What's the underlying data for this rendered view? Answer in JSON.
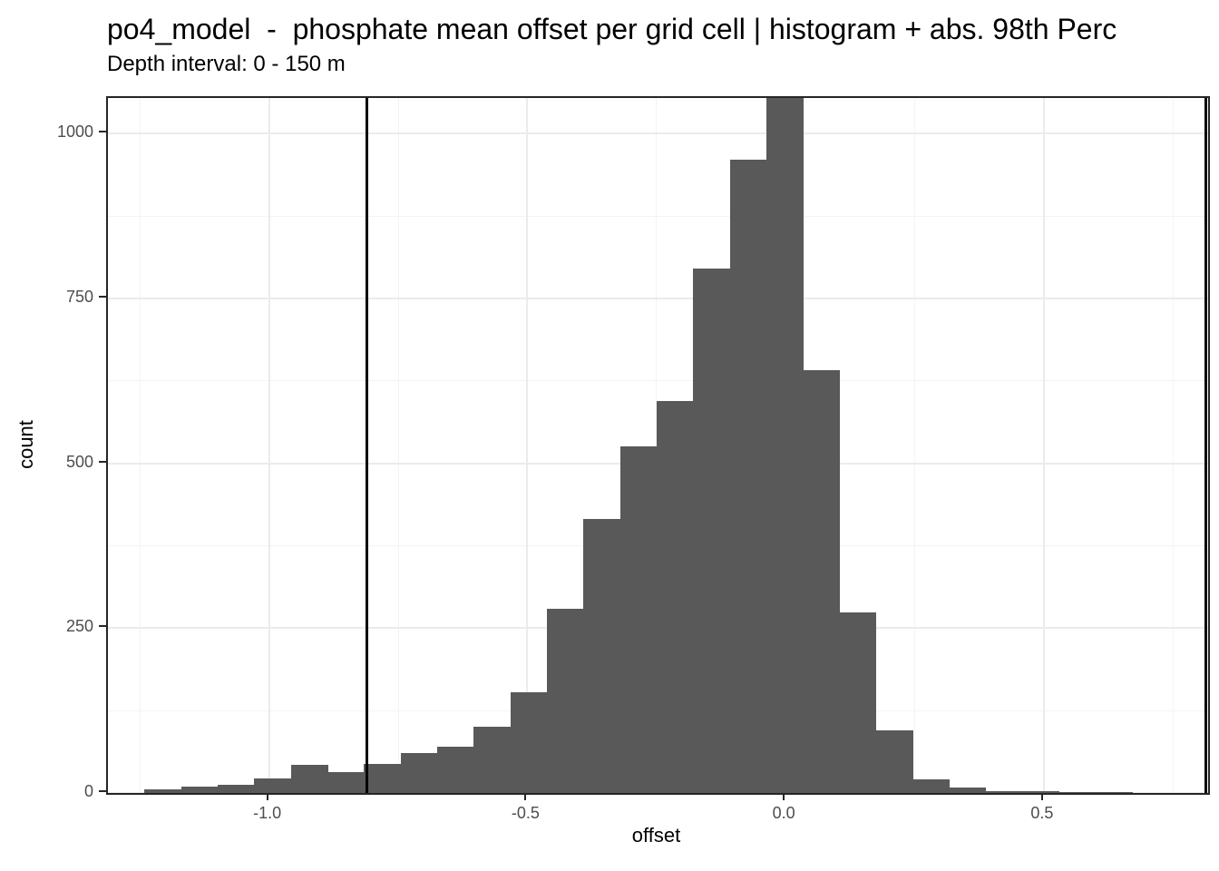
{
  "header": {
    "title": "po4_model  -  phosphate mean offset per grid cell | histogram + abs. 98th Perc",
    "subtitle": "Depth interval: 0 - 150 m"
  },
  "chart_data": {
    "type": "bar",
    "subtype": "histogram",
    "title": "po4_model  -  phosphate mean offset per grid cell | histogram + abs. 98th Perc",
    "subtitle": "Depth interval: 0 - 150 m",
    "xlabel": "offset",
    "ylabel": "count",
    "xlim": [
      -1.312,
      0.818
    ],
    "ylim": [
      0,
      1054
    ],
    "grid": true,
    "legend": false,
    "bin_start": -1.241,
    "bin_width": 0.0708,
    "counts": [
      6,
      10,
      12,
      22,
      42,
      31,
      44,
      60,
      70,
      101,
      153,
      279,
      415,
      525,
      595,
      796,
      960,
      1054,
      641,
      274,
      95,
      20,
      8,
      3,
      3,
      1,
      1
    ],
    "peak_clipped_at_panel_top": true,
    "vlines": [
      -0.81,
      0.813
    ],
    "x_ticks": [
      {
        "v": -1.0,
        "label": "-1.0"
      },
      {
        "v": -0.5,
        "label": "-0.5"
      },
      {
        "v": 0.0,
        "label": "0.0"
      },
      {
        "v": 0.5,
        "label": "0.5"
      }
    ],
    "y_ticks": [
      {
        "v": 0,
        "label": "0"
      },
      {
        "v": 250,
        "label": "250"
      },
      {
        "v": 500,
        "label": "500"
      },
      {
        "v": 750,
        "label": "750"
      },
      {
        "v": 1000,
        "label": "1000"
      }
    ],
    "x_minor": [
      -1.25,
      -0.75,
      -0.25,
      0.25,
      0.75
    ],
    "y_minor": [
      125,
      375,
      625,
      875
    ],
    "colors": {
      "bar": "#595959",
      "vline": "#000000",
      "panel_border": "#262626",
      "grid_major": "#ebebeb",
      "grid_minor": "#f4f4f4",
      "tick_text": "#4d4d4d",
      "title_text": "#000000"
    }
  }
}
